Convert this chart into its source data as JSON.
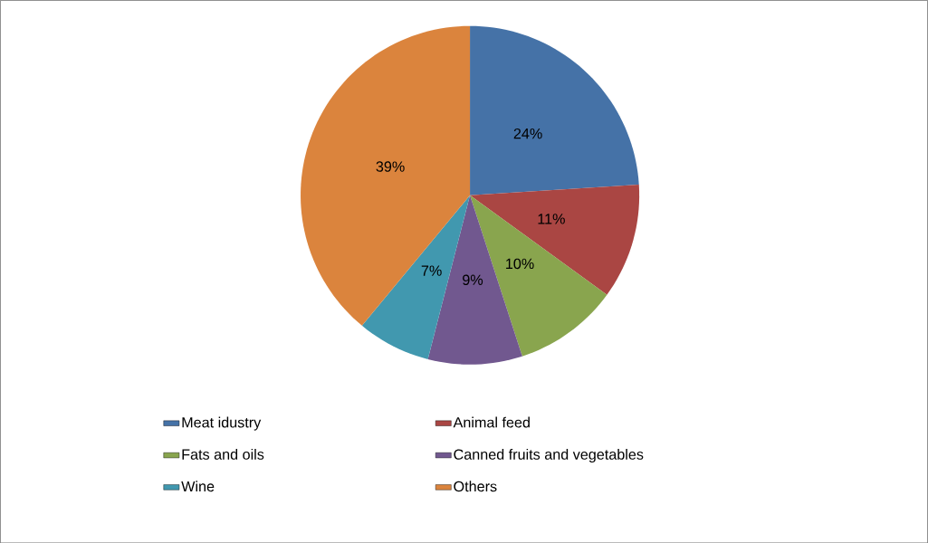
{
  "chart_data": {
    "type": "pie",
    "categories": [
      "Meat idustry",
      "Animal feed",
      "Fats and oils",
      "Canned fruits and vegetables",
      "Wine",
      "Others"
    ],
    "values": [
      24,
      11,
      10,
      9,
      7,
      39
    ],
    "value_labels": [
      "24%",
      "11%",
      "10%",
      "9%",
      "7%",
      "39%"
    ],
    "colors": [
      "#4572a7",
      "#aa4643",
      "#89a54e",
      "#71588f",
      "#4198af",
      "#db843d"
    ],
    "legend": "bottom"
  }
}
